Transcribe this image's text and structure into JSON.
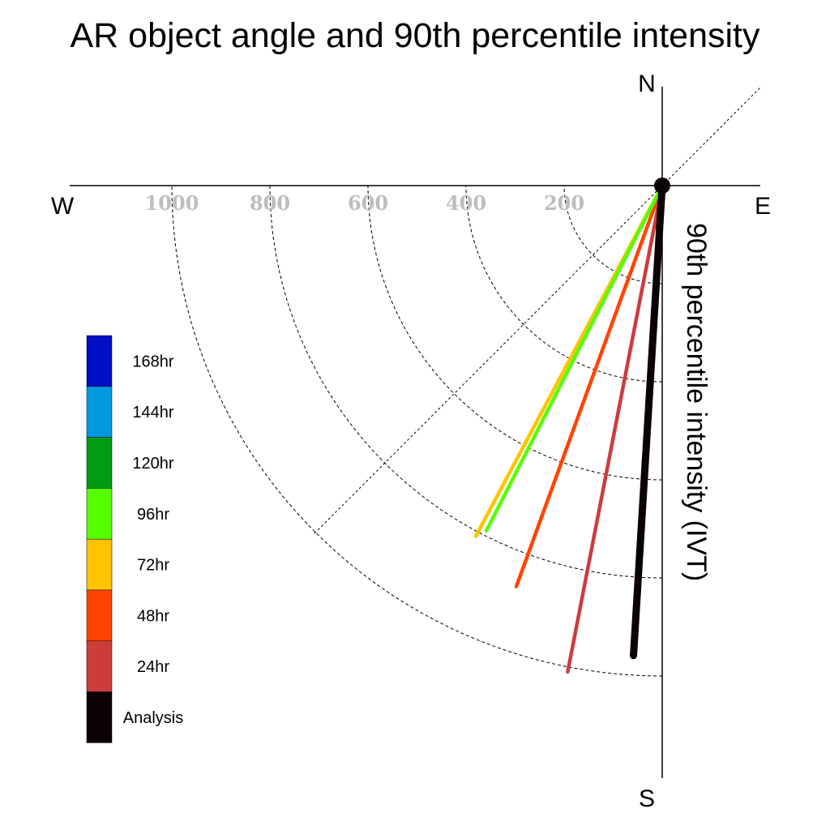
{
  "chart_data": {
    "type": "polar-line",
    "title": "AR object angle and 90th percentile intensity",
    "radial_axis_label": "90th percentile intensity (IVT)",
    "compass_labels": {
      "north": "N",
      "south": "S",
      "east": "E",
      "west": "W"
    },
    "radial_ticks": [
      {
        "value": 200,
        "label": "200"
      },
      {
        "value": 400,
        "label": "400"
      },
      {
        "value": 600,
        "label": "600"
      },
      {
        "value": 800,
        "label": "800"
      },
      {
        "value": 1000,
        "label": "1000"
      }
    ],
    "rlim": [
      0,
      1000
    ],
    "angle_convention": "degrees clockwise from South toward West",
    "series": [
      {
        "name": "Analysis",
        "color": "#0b0208",
        "angle_deg": 3.5,
        "intensity": 960
      },
      {
        "name": "24hr",
        "color": "#cc3c3c",
        "angle_deg": 11,
        "intensity": 1010
      },
      {
        "name": "48hr",
        "color": "#ff4400",
        "angle_deg": 20,
        "intensity": 870
      },
      {
        "name": "72hr",
        "color": "#ffc300",
        "angle_deg": 28,
        "intensity": 810
      },
      {
        "name": "96hr",
        "color": "#55ff00",
        "angle_deg": 27,
        "intensity": 790
      },
      {
        "name": "120hr",
        "color": "#009c14",
        "angle_deg": null,
        "intensity": null
      },
      {
        "name": "144hr",
        "color": "#0099e0",
        "angle_deg": null,
        "intensity": null
      },
      {
        "name": "168hr",
        "color": "#000fc4",
        "angle_deg": null,
        "intensity": null
      }
    ],
    "legend": {
      "position": "left",
      "entries": [
        "168hr",
        "144hr",
        "120hr",
        "96hr",
        "72hr",
        "48hr",
        "24hr",
        "Analysis"
      ]
    },
    "grid": true
  }
}
